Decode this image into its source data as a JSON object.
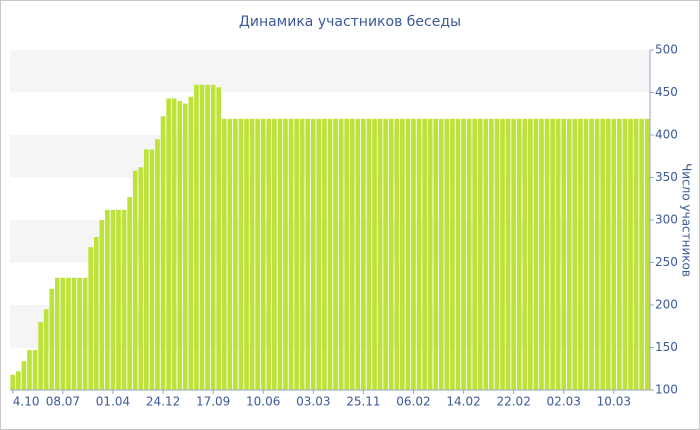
{
  "chart_data": {
    "type": "bar",
    "title": "Динамика участников беседы",
    "y_label": "Число участников",
    "categories": [
      "4.10",
      null,
      null,
      null,
      null,
      null,
      null,
      null,
      null,
      "08.07",
      null,
      null,
      null,
      null,
      null,
      null,
      null,
      null,
      "01.04",
      null,
      null,
      null,
      null,
      null,
      null,
      null,
      null,
      "24.12",
      null,
      null,
      null,
      null,
      null,
      null,
      null,
      null,
      "17.09",
      null,
      null,
      null,
      null,
      null,
      null,
      null,
      null,
      "10.06",
      null,
      null,
      null,
      null,
      null,
      null,
      null,
      null,
      "03.03",
      null,
      null,
      null,
      null,
      null,
      null,
      null,
      null,
      "25.11",
      null,
      null,
      null,
      null,
      null,
      null,
      null,
      null,
      "06.02",
      null,
      null,
      null,
      null,
      null,
      null,
      null,
      null,
      "14.02",
      null,
      null,
      null,
      null,
      null,
      null,
      null,
      null,
      "22.02",
      null,
      null,
      null,
      null,
      null,
      null,
      null,
      null,
      "02.03",
      null,
      null,
      null,
      null,
      null,
      null,
      null,
      null,
      "10.03",
      null,
      null,
      null,
      null,
      null,
      null
    ],
    "values": [
      118,
      122,
      134,
      147,
      147,
      180,
      195,
      219,
      232,
      232,
      232,
      232,
      232,
      232,
      268,
      280,
      300,
      312,
      312,
      312,
      312,
      327,
      358,
      362,
      383,
      383,
      395,
      422,
      443,
      443,
      440,
      437,
      445,
      459,
      459,
      459,
      459,
      456,
      419,
      419,
      419,
      419,
      419,
      419,
      419,
      419,
      419,
      419,
      419,
      419,
      419,
      419,
      419,
      419,
      419,
      419,
      419,
      419,
      419,
      419,
      419,
      419,
      419,
      419,
      419,
      419,
      419,
      419,
      419,
      419,
      419,
      419,
      419,
      419,
      419,
      419,
      419,
      419,
      419,
      419,
      419,
      419,
      419,
      419,
      419,
      419,
      419,
      419,
      419,
      419,
      419,
      419,
      419,
      419,
      419,
      419,
      419,
      419,
      419,
      419,
      419,
      419,
      419,
      419,
      419,
      419,
      419,
      419,
      419,
      419,
      419,
      419,
      419,
      419,
      419
    ],
    "color": "#bde33a",
    "ylim": [
      100,
      500
    ],
    "yticks": [
      100,
      150,
      200,
      250,
      300,
      350,
      400,
      450,
      500
    ],
    "y_axis_side": "right",
    "bands": true
  }
}
